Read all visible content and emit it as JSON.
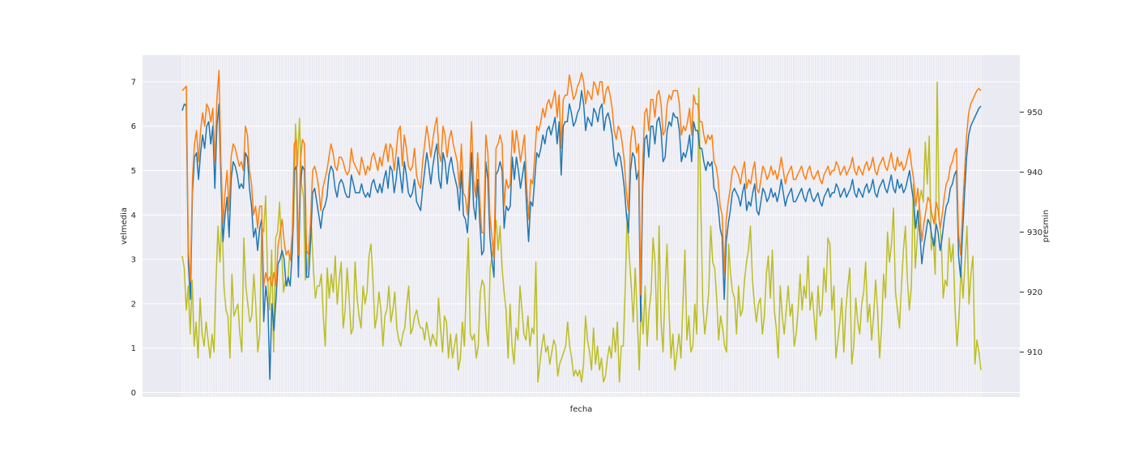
{
  "chart_data": {
    "type": "line",
    "title": "",
    "xlabel": "fecha",
    "ylabel_left": "velmedia",
    "ylabel_right": "presmin",
    "grid": true,
    "ylim_left": [
      -0.1,
      7.6
    ],
    "ylim_right": [
      902.5,
      959.5
    ],
    "yticks_left": [
      0,
      1,
      2,
      3,
      4,
      5,
      6,
      7
    ],
    "yticks_right": [
      910,
      920,
      930,
      940,
      950
    ],
    "x_points": 366,
    "background_color": "#eaeaf2",
    "series": [
      {
        "axis": "left",
        "color": "#1f77b4",
        "values": [
          6.35,
          6.5,
          6.45,
          2.9,
          2.1,
          4.5,
          5.3,
          5.4,
          4.8,
          5.4,
          5.8,
          5.5,
          6.0,
          6.1,
          5.6,
          6.0,
          4.6,
          6.0,
          6.5,
          4.8,
          3.4,
          4.0,
          4.4,
          3.5,
          4.8,
          5.2,
          5.1,
          4.9,
          4.6,
          4.7,
          4.6,
          5.4,
          5.3,
          4.6,
          4.2,
          3.5,
          3.7,
          3.2,
          3.7,
          3.9,
          1.6,
          2.4,
          2.0,
          0.3,
          2.0,
          1.4,
          2.1,
          2.9,
          3.0,
          3.2,
          3.0,
          2.4,
          2.6,
          2.4,
          3.2,
          5.0,
          5.1,
          2.6,
          4.7,
          5.1,
          5.0,
          2.6,
          2.6,
          3.4,
          4.5,
          4.6,
          4.3,
          4.0,
          3.7,
          4.1,
          4.2,
          4.4,
          4.9,
          5.1,
          5.0,
          4.6,
          4.4,
          4.7,
          4.8,
          4.7,
          4.5,
          4.4,
          4.4,
          4.9,
          4.7,
          4.5,
          4.5,
          4.5,
          4.7,
          4.5,
          4.4,
          4.5,
          4.4,
          4.7,
          4.8,
          4.6,
          4.5,
          4.7,
          4.5,
          4.8,
          5.0,
          4.6,
          5.1,
          5.0,
          4.5,
          4.8,
          5.3,
          4.9,
          4.5,
          5.2,
          4.9,
          4.5,
          4.4,
          4.5,
          4.8,
          4.3,
          4.2,
          4.1,
          4.6,
          5.0,
          5.4,
          5.1,
          4.7,
          5.1,
          5.4,
          5.6,
          4.8,
          4.6,
          5.4,
          5.2,
          4.7,
          5.1,
          5.3,
          5.0,
          4.8,
          4.6,
          4.1,
          5.0,
          4.0,
          3.9,
          3.6,
          4.4,
          5.4,
          4.2,
          3.9,
          4.8,
          3.9,
          3.1,
          3.2,
          5.2,
          4.8,
          3.5,
          3.0,
          2.6,
          4.9,
          5.0,
          5.2,
          5.0,
          3.7,
          4.2,
          4.1,
          4.2,
          5.3,
          4.8,
          5.3,
          5.0,
          4.6,
          4.9,
          5.2,
          4.2,
          3.4,
          4.3,
          4.2,
          4.8,
          5.4,
          5.3,
          5.5,
          5.8,
          5.6,
          5.9,
          6.0,
          5.8,
          6.0,
          6.2,
          5.6,
          6.1,
          4.9,
          6.0,
          6.1,
          6.1,
          6.5,
          6.3,
          6.0,
          6.1,
          6.3,
          6.4,
          6.8,
          6.5,
          5.9,
          6.2,
          6.1,
          6.0,
          6.4,
          6.3,
          6.1,
          6.4,
          6.5,
          5.9,
          6.2,
          6.3,
          6.1,
          5.8,
          5.3,
          5.1,
          5.4,
          5.3,
          5.0,
          4.6,
          4.0,
          3.6,
          5.0,
          5.4,
          5.3,
          4.8,
          5.0,
          1.6,
          4.6,
          5.7,
          5.8,
          5.3,
          6.0,
          6.0,
          5.6,
          6.1,
          6.2,
          5.9,
          5.2,
          5.3,
          5.9,
          6.1,
          6.0,
          6.3,
          6.2,
          6.2,
          5.9,
          5.2,
          5.4,
          5.3,
          5.5,
          5.8,
          5.2,
          6.1,
          5.9,
          5.9,
          5.5,
          5.5,
          5.2,
          5.0,
          5.2,
          5.1,
          5.2,
          4.6,
          4.5,
          4.2,
          3.7,
          3.5,
          2.1,
          3.4,
          3.8,
          4.1,
          4.5,
          4.6,
          4.5,
          4.4,
          4.2,
          4.5,
          4.7,
          4.1,
          4.3,
          4.2,
          4.5,
          4.7,
          4.1,
          4.0,
          4.3,
          4.6,
          4.5,
          4.3,
          4.4,
          4.6,
          4.4,
          4.5,
          4.3,
          4.5,
          4.8,
          4.5,
          4.2,
          4.4,
          4.5,
          4.6,
          4.3,
          4.3,
          4.4,
          4.5,
          4.6,
          4.4,
          4.3,
          4.5,
          4.6,
          4.4,
          4.3,
          4.4,
          4.5,
          4.3,
          4.2,
          4.4,
          4.5,
          4.6,
          4.4,
          4.5,
          4.5,
          4.7,
          4.6,
          4.4,
          4.5,
          4.6,
          4.4,
          4.5,
          4.6,
          4.8,
          4.5,
          4.4,
          4.6,
          4.5,
          4.4,
          4.6,
          4.7,
          4.5,
          4.6,
          4.8,
          4.5,
          4.4,
          4.6,
          4.7,
          4.8,
          4.6,
          4.5,
          4.7,
          4.9,
          4.6,
          4.5,
          4.8,
          4.6,
          4.7,
          4.5,
          4.6,
          4.8,
          5.0,
          4.6,
          4.3,
          3.7,
          4.1,
          3.6,
          2.9,
          3.3,
          3.6,
          3.9,
          3.8,
          3.5,
          3.3,
          3.8,
          3.6,
          3.2,
          3.5,
          3.9,
          4.2,
          4.3,
          4.6,
          4.7,
          4.9,
          5.0,
          3.1,
          2.6,
          3.6,
          4.5,
          5.3,
          5.8,
          6.0,
          6.1,
          6.2,
          6.3,
          6.4,
          6.45
        ]
      },
      {
        "axis": "left",
        "color": "#ff7f0e",
        "values": [
          6.8,
          6.85,
          6.9,
          3.2,
          2.5,
          4.8,
          5.6,
          5.9,
          5.2,
          5.9,
          6.3,
          6.0,
          6.5,
          6.4,
          6.1,
          6.4,
          5.2,
          6.6,
          7.25,
          5.2,
          3.8,
          4.5,
          5.0,
          4.1,
          5.3,
          5.6,
          5.5,
          5.3,
          5.1,
          5.2,
          5.0,
          6.0,
          5.8,
          5.0,
          4.7,
          4.0,
          4.2,
          3.7,
          4.2,
          4.2,
          2.4,
          2.7,
          2.5,
          2.6,
          2.4,
          2.7,
          2.4,
          3.3,
          3.6,
          3.9,
          3.4,
          3.1,
          3.2,
          3.0,
          3.6,
          5.6,
          5.7,
          3.1,
          5.2,
          5.7,
          5.6,
          3.2,
          3.1,
          3.9,
          5.0,
          5.1,
          4.9,
          4.6,
          4.1,
          4.6,
          4.8,
          5.0,
          5.3,
          5.6,
          5.4,
          5.1,
          5.0,
          5.3,
          5.3,
          5.2,
          5.0,
          4.9,
          5.0,
          5.5,
          5.2,
          5.1,
          5.0,
          4.9,
          5.3,
          5.1,
          4.9,
          5.1,
          5.0,
          5.3,
          5.4,
          5.2,
          5.0,
          5.3,
          5.1,
          5.4,
          5.6,
          5.2,
          5.6,
          5.5,
          5.0,
          5.4,
          5.9,
          6.0,
          5.1,
          5.8,
          5.5,
          5.1,
          5.0,
          5.1,
          5.5,
          4.9,
          4.7,
          4.6,
          5.2,
          5.6,
          6.0,
          5.7,
          5.3,
          5.7,
          6.0,
          6.2,
          5.4,
          5.2,
          6.0,
          5.8,
          5.3,
          5.7,
          5.9,
          5.6,
          5.4,
          5.2,
          4.6,
          5.6,
          4.5,
          4.4,
          4.0,
          4.9,
          6.1,
          4.8,
          4.4,
          5.4,
          4.4,
          3.6,
          3.6,
          5.8,
          5.4,
          4.0,
          3.5,
          3.0,
          5.5,
          5.6,
          5.8,
          5.6,
          4.2,
          4.8,
          4.6,
          4.7,
          5.9,
          5.4,
          5.9,
          5.6,
          5.2,
          5.5,
          5.8,
          4.7,
          3.9,
          4.8,
          4.7,
          5.3,
          6.0,
          5.9,
          6.1,
          6.4,
          6.2,
          6.5,
          6.6,
          6.4,
          6.6,
          6.8,
          6.2,
          6.7,
          5.5,
          6.6,
          6.7,
          6.7,
          7.15,
          6.9,
          6.6,
          6.7,
          6.9,
          7.0,
          7.2,
          7.0,
          6.5,
          6.8,
          6.7,
          6.6,
          7.0,
          6.9,
          6.7,
          7.0,
          7.0,
          6.5,
          6.8,
          6.9,
          6.7,
          6.4,
          5.9,
          5.7,
          6.0,
          5.9,
          5.6,
          5.2,
          4.5,
          4.1,
          5.6,
          6.0,
          5.9,
          5.4,
          5.6,
          2.2,
          5.2,
          6.3,
          6.4,
          5.9,
          6.6,
          6.6,
          6.2,
          6.7,
          6.8,
          6.5,
          5.8,
          5.9,
          6.5,
          6.7,
          6.6,
          6.8,
          6.8,
          6.8,
          6.5,
          5.8,
          6.0,
          5.9,
          6.1,
          6.4,
          5.8,
          6.7,
          6.5,
          6.5,
          6.1,
          6.1,
          5.8,
          5.6,
          5.8,
          5.7,
          5.8,
          5.2,
          5.1,
          4.8,
          4.2,
          4.0,
          2.7,
          3.9,
          4.3,
          4.6,
          5.0,
          5.1,
          5.0,
          4.9,
          4.7,
          5.0,
          5.2,
          4.6,
          4.8,
          4.7,
          5.0,
          5.2,
          4.6,
          4.5,
          4.8,
          5.1,
          5.0,
          4.8,
          4.9,
          5.1,
          4.9,
          5.0,
          4.8,
          5.0,
          5.3,
          5.0,
          4.7,
          4.9,
          5.0,
          5.1,
          4.8,
          4.8,
          4.9,
          5.0,
          5.1,
          4.9,
          4.8,
          5.0,
          5.1,
          4.9,
          4.8,
          4.9,
          5.0,
          4.8,
          4.7,
          4.9,
          5.0,
          5.1,
          4.9,
          5.0,
          5.0,
          5.2,
          5.1,
          4.9,
          5.0,
          5.1,
          4.9,
          5.0,
          5.1,
          5.3,
          5.0,
          4.9,
          5.1,
          5.0,
          4.9,
          5.1,
          5.2,
          5.0,
          5.1,
          5.3,
          5.0,
          4.9,
          5.1,
          5.2,
          5.3,
          5.1,
          5.0,
          5.2,
          5.4,
          5.1,
          5.0,
          5.3,
          5.1,
          5.2,
          5.0,
          5.1,
          5.3,
          5.5,
          5.1,
          4.8,
          4.2,
          4.6,
          4.1,
          3.4,
          3.8,
          4.1,
          4.4,
          4.3,
          4.0,
          3.8,
          4.3,
          4.1,
          3.7,
          4.0,
          4.4,
          4.7,
          4.8,
          5.1,
          5.2,
          5.4,
          5.5,
          3.6,
          3.1,
          4.1,
          5.0,
          5.8,
          6.3,
          6.5,
          6.6,
          6.7,
          6.8,
          6.85,
          6.8
        ]
      },
      {
        "axis": "right",
        "color": "#bcbd22",
        "values": [
          926,
          924,
          917,
          921,
          913,
          922,
          911,
          915,
          909,
          919,
          913,
          911,
          915,
          912,
          909,
          913,
          910,
          922,
          931,
          925,
          933,
          921,
          917,
          916,
          909,
          923,
          916,
          917,
          918,
          913,
          910,
          929,
          921,
          918,
          915,
          916,
          923,
          918,
          910,
          913,
          931,
          930,
          936,
          922,
          917,
          927,
          910,
          929,
          930,
          935,
          927,
          920,
          922,
          921,
          926,
          925,
          931,
          948,
          941,
          949,
          938,
          936,
          922,
          924,
          929,
          931,
          924,
          919,
          921,
          921,
          923,
          916,
          911,
          924,
          919,
          923,
          920,
          926,
          918,
          922,
          925,
          914,
          917,
          924,
          919,
          913,
          914,
          925,
          919,
          916,
          914,
          921,
          918,
          920,
          926,
          928,
          922,
          914,
          916,
          920,
          917,
          911,
          916,
          917,
          921,
          915,
          917,
          920,
          914,
          912,
          911,
          913,
          914,
          918,
          921,
          913,
          914,
          916,
          917,
          915,
          914,
          914,
          912,
          915,
          913,
          911,
          913,
          912,
          911,
          919,
          914,
          910,
          916,
          915,
          909,
          913,
          909,
          911,
          913,
          907,
          909,
          915,
          911,
          921,
          929,
          913,
          912,
          913,
          909,
          911,
          920,
          922,
          921,
          914,
          911,
          924,
          926,
          929,
          932,
          927,
          931,
          924,
          920,
          917,
          909,
          918,
          911,
          908,
          914,
          912,
          921,
          917,
          913,
          912,
          916,
          911,
          914,
          913,
          925,
          905,
          908,
          911,
          913,
          910,
          911,
          908,
          910,
          912,
          911,
          906,
          908,
          909,
          910,
          911,
          915,
          911,
          909,
          906,
          907,
          906,
          907,
          905,
          908,
          916,
          912,
          910,
          907,
          914,
          908,
          911,
          907,
          909,
          905,
          906,
          909,
          911,
          909,
          914,
          910,
          915,
          905,
          911,
          911,
          921,
          933,
          926,
          921,
          915,
          924,
          916,
          907,
          918,
          913,
          921,
          911,
          917,
          920,
          929,
          925,
          912,
          931,
          915,
          910,
          920,
          928,
          917,
          909,
          913,
          907,
          910,
          913,
          909,
          918,
          927,
          912,
          916,
          910,
          911,
          918,
          913,
          954,
          935,
          918,
          913,
          916,
          920,
          931,
          925,
          924,
          919,
          912,
          916,
          914,
          911,
          910,
          928,
          923,
          920,
          919,
          913,
          921,
          916,
          917,
          922,
          925,
          927,
          931,
          922,
          918,
          915,
          918,
          919,
          913,
          916,
          923,
          926,
          919,
          927,
          917,
          914,
          909,
          921,
          916,
          913,
          917,
          921,
          916,
          918,
          911,
          913,
          917,
          923,
          917,
          921,
          919,
          926,
          917,
          920,
          916,
          912,
          921,
          916,
          917,
          924,
          920,
          929,
          928,
          917,
          921,
          909,
          912,
          915,
          919,
          910,
          917,
          921,
          924,
          908,
          911,
          919,
          915,
          913,
          918,
          920,
          925,
          915,
          918,
          912,
          916,
          922,
          917,
          909,
          914,
          923,
          919,
          930,
          925,
          928,
          934,
          920,
          917,
          914,
          921,
          927,
          931,
          922,
          917,
          921,
          938,
          924,
          929,
          935,
          937,
          935,
          945,
          938,
          946,
          927,
          929,
          923,
          955,
          932,
          929,
          919,
          922,
          921,
          929,
          925,
          928,
          917,
          911,
          916,
          924,
          919,
          925,
          931,
          918,
          923,
          926,
          908,
          912,
          910,
          907
        ]
      }
    ]
  }
}
